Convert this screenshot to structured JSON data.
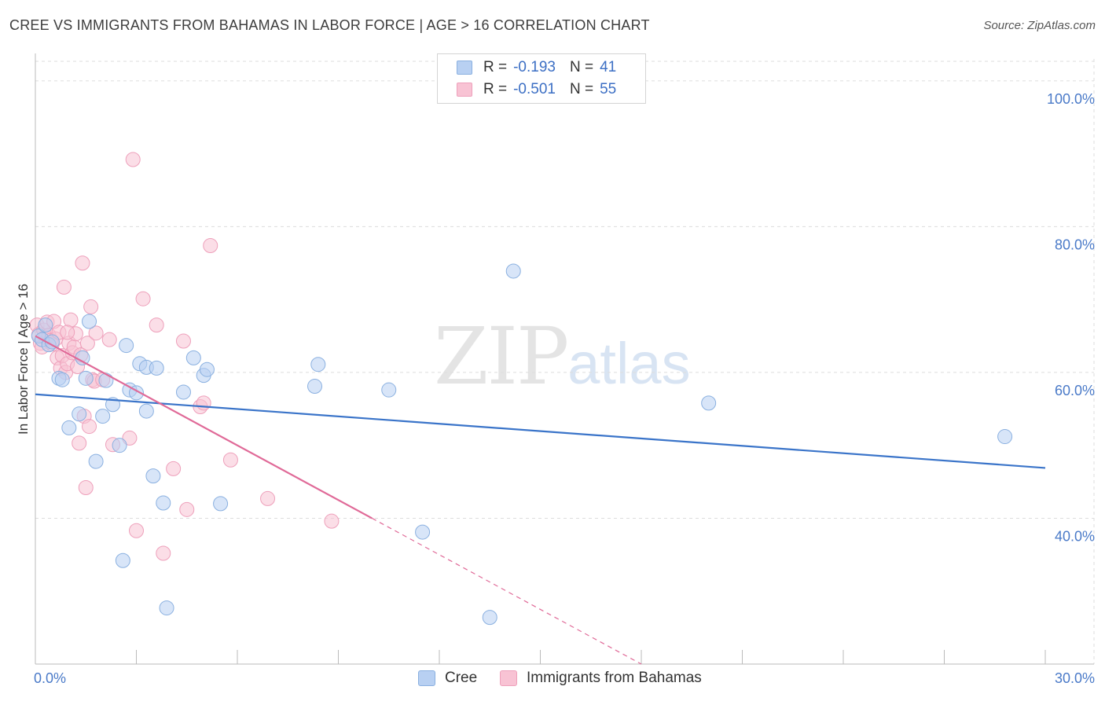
{
  "header": {
    "title": "CREE VS IMMIGRANTS FROM BAHAMAS IN LABOR FORCE | AGE > 16 CORRELATION CHART",
    "source": "Source: ZipAtlas.com"
  },
  "watermark": {
    "zip": "ZIP",
    "atlas": "atlas"
  },
  "legend": {
    "series1": {
      "r_label": "R =",
      "r_value": "-0.193",
      "n_label": "N =",
      "n_value": "41"
    },
    "series2": {
      "r_label": "R =",
      "r_value": "-0.501",
      "n_label": "N =",
      "n_value": "55"
    }
  },
  "bottom_legend": {
    "series1": "Cree",
    "series2": "Immigrants from Bahamas"
  },
  "colors": {
    "cree_fill": "#b8d0f2",
    "cree_stroke": "#8ab0e0",
    "cree_line": "#3a74c9",
    "bahamas_fill": "#f8c3d4",
    "bahamas_stroke": "#eea0bb",
    "bahamas_line": "#e06a98",
    "grid": "#dddddd",
    "axis_text": "#4a7ac8"
  },
  "chart_data": {
    "type": "scatter",
    "title": "CREE VS IMMIGRANTS FROM BAHAMAS IN LABOR FORCE | AGE > 16 CORRELATION CHART",
    "xlabel": "",
    "ylabel": "In Labor Force | Age > 16",
    "xlim": [
      0,
      30
    ],
    "ylim": [
      20,
      103
    ],
    "x_tick_labels": [
      "0.0%",
      "30.0%"
    ],
    "y_ticks": [
      40,
      60,
      80,
      100
    ],
    "y_tick_labels": [
      "40.0%",
      "60.0%",
      "80.0%",
      "100.0%"
    ],
    "grid": true,
    "legend_position": "top-center",
    "series": [
      {
        "name": "Cree",
        "r": -0.193,
        "n": 41,
        "trend": {
          "x": [
            0,
            30
          ],
          "y": [
            57.0,
            46.9
          ]
        },
        "points": [
          [
            0.1,
            65.0
          ],
          [
            0.2,
            64.5
          ],
          [
            0.3,
            66.5
          ],
          [
            0.4,
            63.8
          ],
          [
            0.7,
            59.2
          ],
          [
            0.8,
            59.0
          ],
          [
            1.0,
            52.4
          ],
          [
            1.3,
            54.3
          ],
          [
            1.4,
            62.0
          ],
          [
            1.5,
            59.2
          ],
          [
            1.6,
            67.0
          ],
          [
            1.8,
            47.8
          ],
          [
            2.0,
            54.0
          ],
          [
            2.1,
            58.9
          ],
          [
            2.3,
            55.6
          ],
          [
            2.5,
            50.0
          ],
          [
            2.6,
            34.2
          ],
          [
            2.7,
            63.7
          ],
          [
            2.8,
            57.6
          ],
          [
            3.0,
            57.2
          ],
          [
            3.1,
            61.2
          ],
          [
            3.3,
            60.7
          ],
          [
            3.3,
            54.7
          ],
          [
            3.5,
            45.8
          ],
          [
            3.6,
            60.6
          ],
          [
            3.8,
            42.1
          ],
          [
            3.9,
            27.7
          ],
          [
            4.4,
            57.3
          ],
          [
            4.7,
            62.0
          ],
          [
            5.0,
            59.6
          ],
          [
            5.1,
            60.4
          ],
          [
            5.5,
            42.0
          ],
          [
            8.3,
            58.1
          ],
          [
            8.4,
            61.1
          ],
          [
            10.5,
            57.6
          ],
          [
            11.5,
            38.1
          ],
          [
            13.5,
            26.4
          ],
          [
            14.2,
            73.9
          ],
          [
            20.0,
            55.8
          ],
          [
            28.8,
            51.2
          ],
          [
            0.5,
            64.2
          ]
        ]
      },
      {
        "name": "Immigrants from Bahamas",
        "r": -0.501,
        "n": 55,
        "trend_solid": {
          "x": [
            0,
            10.0
          ],
          "y": [
            65.0,
            40.0
          ]
        },
        "trend_dashed": {
          "x": [
            10.0,
            18.0
          ],
          "y": [
            40.0,
            20.0
          ]
        },
        "points": [
          [
            0.05,
            66.5
          ],
          [
            0.1,
            65.2
          ],
          [
            0.15,
            64.0
          ],
          [
            0.2,
            63.5
          ],
          [
            0.25,
            65.8
          ],
          [
            0.3,
            64.8
          ],
          [
            0.35,
            66.9
          ],
          [
            0.4,
            65.1
          ],
          [
            0.45,
            64.4
          ],
          [
            0.5,
            63.9
          ],
          [
            0.55,
            67.0
          ],
          [
            0.6,
            64.6
          ],
          [
            0.65,
            62.0
          ],
          [
            0.7,
            65.5
          ],
          [
            0.75,
            60.6
          ],
          [
            0.8,
            62.3
          ],
          [
            0.85,
            71.7
          ],
          [
            0.9,
            60.0
          ],
          [
            0.95,
            61.2
          ],
          [
            1.0,
            64.0
          ],
          [
            1.05,
            67.2
          ],
          [
            1.1,
            62.7
          ],
          [
            1.15,
            63.5
          ],
          [
            1.2,
            65.3
          ],
          [
            1.25,
            60.8
          ],
          [
            1.3,
            50.3
          ],
          [
            1.35,
            62.4
          ],
          [
            1.4,
            75.0
          ],
          [
            1.45,
            54.0
          ],
          [
            1.5,
            44.2
          ],
          [
            1.55,
            64.0
          ],
          [
            1.6,
            52.6
          ],
          [
            1.65,
            69.0
          ],
          [
            1.7,
            59.0
          ],
          [
            1.75,
            58.8
          ],
          [
            1.8,
            65.4
          ],
          [
            2.0,
            59.0
          ],
          [
            2.2,
            64.5
          ],
          [
            2.3,
            50.1
          ],
          [
            2.8,
            51.0
          ],
          [
            2.9,
            89.2
          ],
          [
            3.0,
            38.3
          ],
          [
            3.2,
            70.1
          ],
          [
            3.6,
            66.5
          ],
          [
            3.8,
            35.2
          ],
          [
            4.1,
            46.8
          ],
          [
            4.4,
            64.3
          ],
          [
            4.5,
            41.2
          ],
          [
            4.9,
            55.3
          ],
          [
            5.0,
            55.8
          ],
          [
            5.2,
            77.4
          ],
          [
            5.8,
            48.0
          ],
          [
            6.9,
            42.7
          ],
          [
            8.8,
            39.6
          ],
          [
            0.95,
            65.5
          ]
        ]
      }
    ]
  }
}
